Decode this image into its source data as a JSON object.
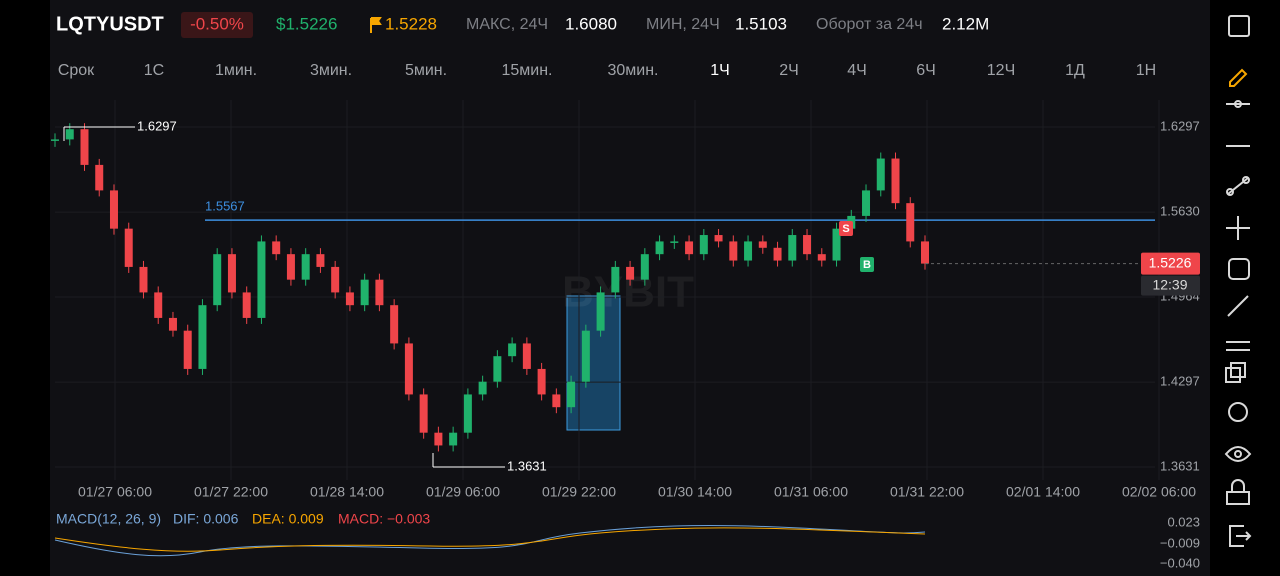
{
  "header": {
    "symbol": "LQTYUSDT",
    "change": "-0.50%",
    "price": "$1.5226",
    "mark_price": "1.5228",
    "stats": [
      {
        "label": "МАКС, 24Ч",
        "value": "1.6080"
      },
      {
        "label": "МИН, 24Ч",
        "value": "1.5103"
      },
      {
        "label": "Оборот за 24ч",
        "value": "2.12M"
      }
    ]
  },
  "intervals": {
    "items": [
      "Срок",
      "1С",
      "1мин.",
      "3мин.",
      "5мин.",
      "15мин.",
      "30мин.",
      "1Ч",
      "2Ч",
      "4Ч",
      "6Ч",
      "12Ч",
      "1Д",
      "1Н"
    ],
    "active": "1Ч"
  },
  "chart": {
    "type": "candlestick",
    "watermark": "BYBIT",
    "closes": [
      1.62,
      1.628,
      1.6,
      1.58,
      1.55,
      1.52,
      1.5,
      1.48,
      1.47,
      1.44,
      1.49,
      1.53,
      1.5,
      1.48,
      1.54,
      1.53,
      1.51,
      1.53,
      1.52,
      1.5,
      1.49,
      1.51,
      1.49,
      1.46,
      1.42,
      1.39,
      1.38,
      1.39,
      1.42,
      1.43,
      1.45,
      1.46,
      1.44,
      1.42,
      1.41,
      1.43,
      1.47,
      1.5,
      1.52,
      1.51,
      1.53,
      1.54,
      1.54,
      1.53,
      1.545,
      1.54,
      1.525,
      1.54,
      1.535,
      1.525,
      1.545,
      1.53,
      1.525,
      1.55,
      1.56,
      1.58,
      1.605,
      1.57,
      1.54,
      1.5226
    ],
    "ylim": [
      1.3529,
      1.6509
    ],
    "yticks": [
      1.6297,
      {
        "value": 1.563,
        "label": "1.5630"
      },
      1.4964,
      1.4297,
      1.3631
    ],
    "xticks": [
      "01/27 06:00",
      "01/27 22:00",
      "01/28 14:00",
      "01/29 06:00",
      "01/29 22:00",
      "01/30 14:00",
      "01/31 06:00",
      "01/31 22:00",
      "02/01 14:00",
      "02/02 06:00"
    ],
    "high": 1.6297,
    "low": 1.3631,
    "level": 1.5567,
    "last": {
      "value": 1.5226,
      "label": "1.5226"
    },
    "timer": "12:39",
    "markers": [
      "S",
      "B"
    ],
    "up_color": "#20b26c",
    "down_color": "#ef454a"
  },
  "macd": {
    "title": "MACD(12, 26, 9)",
    "dif": "DIF: 0.006",
    "dea": "DEA: 0.009",
    "macd": "MACD: −0.003",
    "yticks": [
      "0.023",
      "−0.009",
      "−0.040"
    ]
  }
}
